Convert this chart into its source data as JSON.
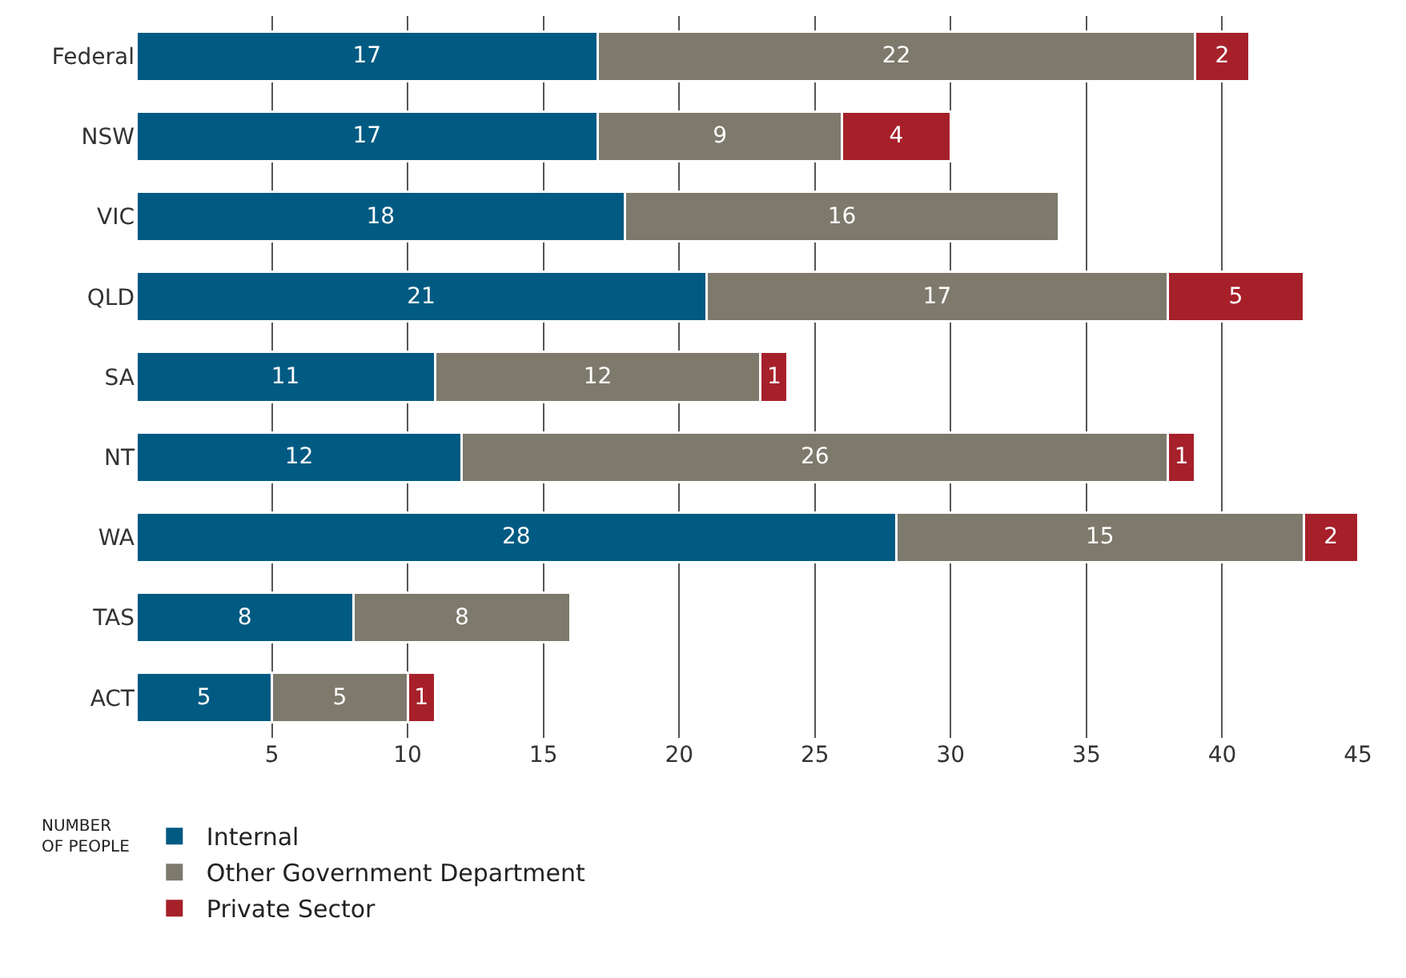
{
  "chart_data": {
    "type": "bar",
    "orientation": "horizontal",
    "stacked": true,
    "data_labels": true,
    "categories": [
      "Federal",
      "NSW",
      "VIC",
      "QLD",
      "SA",
      "NT",
      "WA",
      "TAS",
      "ACT"
    ],
    "series": [
      {
        "name": "Internal",
        "color": "#005a82",
        "values": [
          17,
          17,
          18,
          21,
          11,
          12,
          28,
          8,
          5
        ]
      },
      {
        "name": "Other Government Department",
        "color": "#7d796c",
        "values": [
          22,
          9,
          16,
          17,
          12,
          26,
          15,
          8,
          5
        ]
      },
      {
        "name": "Private Sector",
        "color": "#a6202a",
        "values": [
          2,
          4,
          null,
          5,
          1,
          1,
          2,
          null,
          1
        ]
      }
    ],
    "xlim": [
      0,
      45
    ],
    "xticks": [
      5,
      10,
      15,
      20,
      25,
      30,
      35,
      40,
      45
    ],
    "grid": "x",
    "legend": "bottom left",
    "legend_title": "NUMBER OF PEOPLE"
  }
}
